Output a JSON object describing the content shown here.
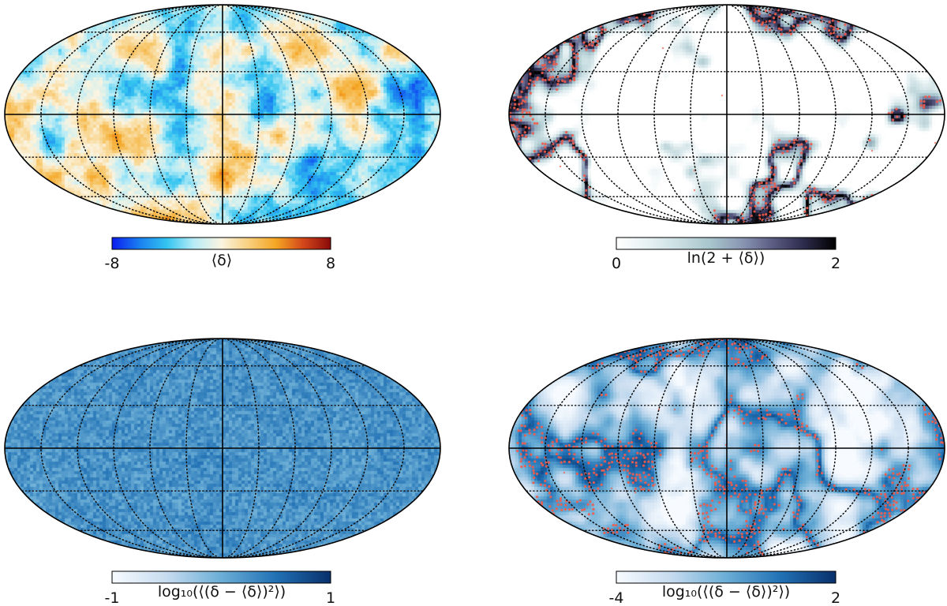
{
  "figure": {
    "panels": [
      {
        "id": "mean-density",
        "colormap": [
          "#0a1cf0",
          "#1a7ff0",
          "#33c4f0",
          "#b8ecf6",
          "#fbf4e0",
          "#f8cf7e",
          "#f5a623",
          "#d2461a",
          "#8b0a0a"
        ],
        "field_range": [
          -4,
          4
        ],
        "field_bias": 0.0,
        "field_detail": 0.55,
        "show_points": false,
        "colorbar": {
          "label": "⟨δ⟩",
          "min_label": "-8",
          "max_label": "8"
        }
      },
      {
        "id": "log-mean-density",
        "colormap": [
          "#ffffff",
          "#e7f1f3",
          "#c9dee2",
          "#a7c5cc",
          "#8a97b3",
          "#5a5b82",
          "#2c2a4a",
          "#000000"
        ],
        "field_range": [
          -1.2,
          4.5
        ],
        "field_bias": -0.2,
        "field_detail": 0.25,
        "show_points": true,
        "point_color": "#f25c4a",
        "colorbar": {
          "label": "ln(2 + ⟨δ⟩)",
          "min_label": "0",
          "max_label": "2"
        }
      },
      {
        "id": "variance-noise",
        "colormap": [
          "#f7fbff",
          "#c6dbef",
          "#6baed6",
          "#2171b5",
          "#08306b"
        ],
        "field_range": [
          -6,
          6
        ],
        "field_bias": 0.0,
        "field_detail": 1.0,
        "flat_level": 0.62,
        "show_points": false,
        "colorbar": {
          "label": "log₁₀(⟨(δ − ⟨δ⟩)²⟩)",
          "min_label": "-1",
          "max_label": "1"
        }
      },
      {
        "id": "variance-structure",
        "colormap": [
          "#f7fbff",
          "#c6dbef",
          "#6baed6",
          "#2171b5",
          "#08306b"
        ],
        "field_range": [
          -3,
          3.5
        ],
        "field_bias": 0.35,
        "field_detail": 0.25,
        "show_points": true,
        "point_color": "#f25c4a",
        "colorbar": {
          "label": "log₁₀(⟨(δ − ⟨δ⟩)²⟩)",
          "min_label": "-4",
          "max_label": "2"
        }
      }
    ]
  }
}
